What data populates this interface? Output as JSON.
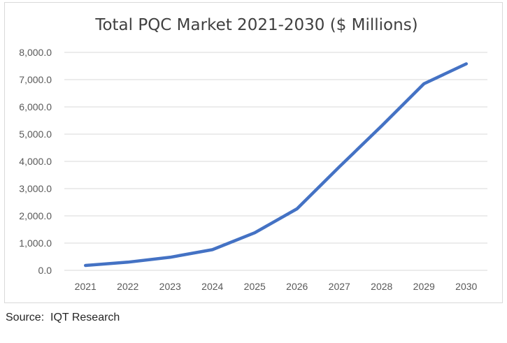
{
  "source_text": "Source:  IQT Research",
  "chart_data": {
    "type": "line",
    "title": "Total PQC Market 2021-2030 ($ Millions)",
    "xlabel": "",
    "ylabel": "",
    "x": [
      "2021",
      "2022",
      "2023",
      "2024",
      "2025",
      "2026",
      "2027",
      "2028",
      "2029",
      "2030"
    ],
    "series": [
      {
        "values": [
          180,
          300,
          480,
          760,
          1380,
          2260,
          3800,
          5300,
          6850,
          7580
        ]
      }
    ],
    "ylim": [
      0,
      8000
    ],
    "yticks": [
      "0.0",
      "1,000.0",
      "2,000.0",
      "3,000.0",
      "4,000.0",
      "5,000.0",
      "6,000.0",
      "7,000.0",
      "8,000.0"
    ],
    "grid": "horizontal",
    "legend": "none",
    "line_color": "#4472c4",
    "grid_color": "#d9d9d9"
  }
}
